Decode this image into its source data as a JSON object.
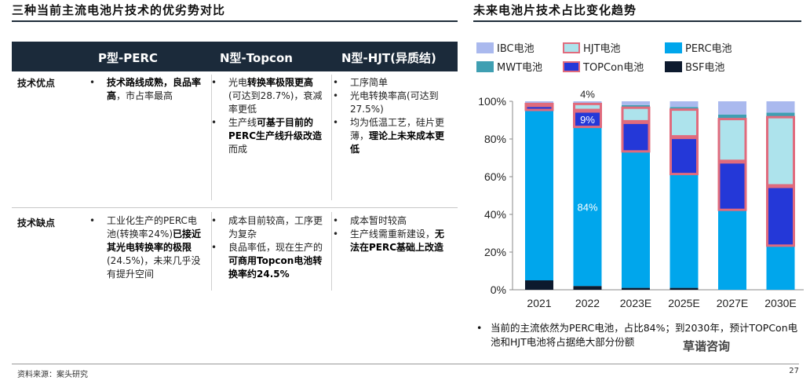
{
  "left_title": "三种当前主流电池片技术的优劣势对比",
  "right_title": "未来电池片技术占比变化趋势",
  "table": {
    "headers": [
      "P型-PERC",
      "N型-Topcon",
      "N型-HJT(异质结)"
    ],
    "row_labels": [
      "技术优点",
      "技术缺点"
    ],
    "advantages": {
      "perc": [
        [
          {
            "t": "技术路线成熟，良品率高",
            "b": true
          },
          {
            "t": "，市占率最高",
            "b": false
          }
        ]
      ],
      "topcon": [
        [
          {
            "t": "光电",
            "b": false
          },
          {
            "t": "转换率极限更高",
            "b": true
          },
          {
            "t": "(可达到28.7%)，衰减率更低",
            "b": false
          }
        ],
        [
          {
            "t": "生产线",
            "b": false
          },
          {
            "t": "可基于目前的PERC生产线升级改造",
            "b": true
          },
          {
            "t": "而成",
            "b": false
          }
        ]
      ],
      "hjt": [
        [
          {
            "t": "工序简单",
            "b": false
          }
        ],
        [
          {
            "t": "光电转换率高(可达到27.5%)",
            "b": false
          }
        ],
        [
          {
            "t": "均为低温工艺，硅片更薄，",
            "b": false
          },
          {
            "t": "理论上未来成本更低",
            "b": true
          }
        ]
      ]
    },
    "disadvantages": {
      "perc": [
        [
          {
            "t": "工业化生产的PERC电池(转换率24%)",
            "b": false
          },
          {
            "t": "已接近其光电转换率的极限",
            "b": true
          },
          {
            "t": "(24.5%)，未来几乎没有提升空间",
            "b": false
          }
        ]
      ],
      "topcon": [
        [
          {
            "t": "成本目前较高，工序更为复杂",
            "b": false
          }
        ],
        [
          {
            "t": "良品率低，现在生产的",
            "b": false
          },
          {
            "t": "可商用Topcon电池转换率约24.5%",
            "b": true
          }
        ]
      ],
      "hjt": [
        [
          {
            "t": "成本暂时较高",
            "b": false
          }
        ],
        [
          {
            "t": "生产线需重新建设，",
            "b": false
          },
          {
            "t": "无法在PERC基础上改造",
            "b": true
          }
        ]
      ]
    }
  },
  "legend": [
    {
      "name": "IBC电池",
      "color": "#aab9ee"
    },
    {
      "name": "HJT电池",
      "color": "#ade3ec"
    },
    {
      "name": "PERC电池",
      "color": "#00a6ec"
    },
    {
      "name": "MWT电池",
      "color": "#3f9fb2"
    },
    {
      "name": "TOPCon电池",
      "color": "#2438d8"
    },
    {
      "name": "BSF电池",
      "color": "#0d1a2e"
    }
  ],
  "chart_data": {
    "type": "bar",
    "stacked": true,
    "categories": [
      "2021",
      "2022",
      "2023E",
      "2025E",
      "2027E",
      "2030E"
    ],
    "ylim": [
      0,
      100
    ],
    "yticks": [
      "0%",
      "20%",
      "40%",
      "60%",
      "80%",
      "100%"
    ],
    "series": [
      {
        "name": "BSF电池",
        "color": "#0d1a2e",
        "values": [
          5,
          2,
          1,
          1,
          0,
          0
        ]
      },
      {
        "name": "PERC电池",
        "color": "#00a6ec",
        "values": [
          90,
          84,
          72,
          60,
          42,
          23
        ]
      },
      {
        "name": "TOPCon电池",
        "color": "#2438d8",
        "values": [
          3,
          9,
          16,
          20,
          26,
          32
        ]
      },
      {
        "name": "HJT电池",
        "color": "#ade3ec",
        "values": [
          1,
          4,
          8,
          15,
          23,
          37
        ]
      },
      {
        "name": "MWT电池",
        "color": "#3f9fb2",
        "values": [
          0,
          0,
          1,
          1,
          2,
          2
        ]
      },
      {
        "name": "IBC电池",
        "color": "#aab9ee",
        "values": [
          1,
          1,
          2,
          3,
          7,
          6
        ]
      }
    ],
    "data_labels": [
      {
        "category": "2022",
        "series": "HJT电池",
        "text": "4%"
      },
      {
        "category": "2022",
        "series": "TOPCon电池",
        "text": "9%"
      },
      {
        "category": "2022",
        "series": "PERC电池",
        "text": "84%"
      }
    ],
    "highlight_series": [
      "HJT电池",
      "TOPCon电池"
    ],
    "highlight_color": "#e06b7d"
  },
  "note": "当前的主流依然为PERC电池，占比84%；到2030年，预计TOPCon电池和HJT电池将占据绝大部分份额",
  "watermark": "草谐咨询",
  "source": "资料来源：案头研究",
  "page_number": "27"
}
